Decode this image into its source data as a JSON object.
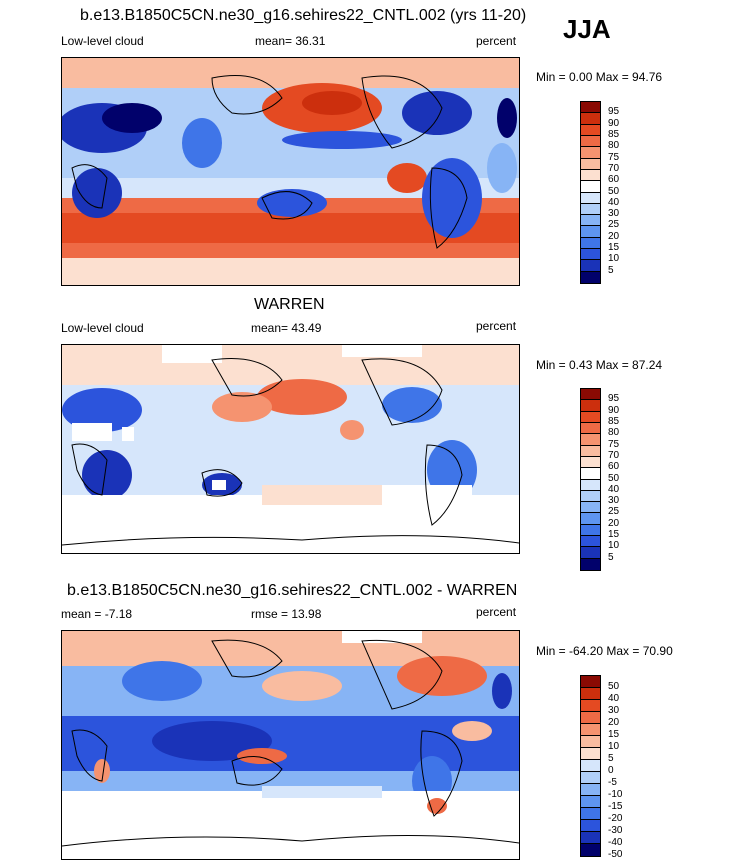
{
  "season": "JJA",
  "scale_abs": {
    "colors": [
      "#01016b",
      "#1a33b8",
      "#2c54dc",
      "#3f75e8",
      "#5e95f0",
      "#87b4f5",
      "#b0cff8",
      "#d6e6fb",
      "#ffffff",
      "#fce0d0",
      "#f9bca0",
      "#f59370",
      "#ee6a45",
      "#e44a22",
      "#cc2f0d",
      "#8a0a03"
    ],
    "ticks": [
      "5",
      "10",
      "15",
      "20",
      "25",
      "30",
      "40",
      "50",
      "60",
      "70",
      "75",
      "80",
      "85",
      "90",
      "95"
    ]
  },
  "scale_diff": {
    "colors": [
      "#01016b",
      "#1a33b8",
      "#2c54dc",
      "#3f75e8",
      "#5e95f0",
      "#87b4f5",
      "#b0cff8",
      "#d6e6fb",
      "#fce0d0",
      "#f9bca0",
      "#f59370",
      "#ee6a45",
      "#e44a22",
      "#cc2f0d",
      "#8a0a03"
    ],
    "ticks": [
      "-50",
      "-40",
      "-30",
      "-20",
      "-15",
      "-10",
      "-5",
      "0",
      "5",
      "10",
      "15",
      "20",
      "30",
      "40",
      "50"
    ]
  },
  "chart_data": [
    {
      "type": "heatmap",
      "title": "b.e13.B1850C5CN.ne30_g16.sehires22_CNTL.002 (yrs 11-20)",
      "left_label": "Low-level cloud",
      "center_label": "mean=  36.31",
      "units": "percent",
      "minmax": "Min =   0.00 Max =  94.76",
      "stats": {
        "mean": 36.31,
        "min": 0.0,
        "max": 94.76
      }
    },
    {
      "type": "heatmap",
      "title": "WARREN",
      "left_label": "Low-level cloud",
      "center_label": "mean=  43.49",
      "units": "percent",
      "minmax": "Min =   0.43 Max =  87.24",
      "stats": {
        "mean": 43.49,
        "min": 0.43,
        "max": 87.24
      }
    },
    {
      "type": "heatmap",
      "title": "b.e13.B1850C5CN.ne30_g16.sehires22_CNTL.002 - WARREN",
      "left_label": "mean =  -7.18",
      "center_label": "rmse =  13.98",
      "units": "percent",
      "minmax": "Min = -64.20 Max =  70.90",
      "stats": {
        "mean": -7.18,
        "rmse": 13.98,
        "min": -64.2,
        "max": 70.9
      }
    }
  ]
}
